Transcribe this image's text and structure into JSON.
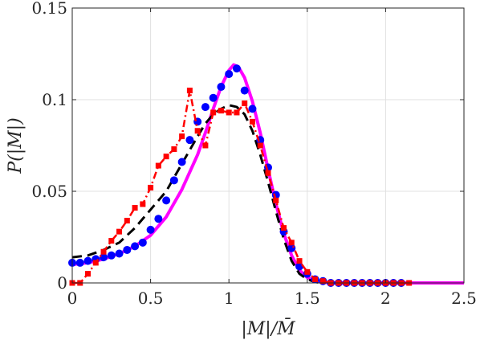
{
  "chart_data": {
    "type": "line",
    "title": "",
    "xlabel": "|M|/M̄",
    "ylabel": "P(|M|)",
    "xlim": [
      0,
      2.5
    ],
    "ylim": [
      0,
      0.15
    ],
    "xticks": [
      0,
      0.5,
      1,
      1.5,
      2,
      2.5
    ],
    "xtick_labels": [
      "0",
      "0.5",
      "1",
      "1.5",
      "2",
      "2.5"
    ],
    "yticks": [
      0,
      0.05,
      0.1,
      0.15
    ],
    "ytick_labels": [
      "0",
      "0.05",
      "0.1",
      "0.15"
    ],
    "grid": true,
    "legend": "none",
    "series": [
      {
        "style": "solid",
        "color": "#ff00ff",
        "x": [
          0,
          0.1,
          0.2,
          0.3,
          0.4,
          0.5,
          0.6,
          0.7,
          0.8,
          0.85,
          0.9,
          0.95,
          1.0,
          1.03,
          1.06,
          1.1,
          1.15,
          1.2,
          1.25,
          1.3,
          1.35,
          1.4,
          1.45,
          1.5,
          1.55,
          1.6,
          1.7,
          2.0,
          2.5
        ],
        "y": [
          0.01,
          0.011,
          0.013,
          0.016,
          0.02,
          0.026,
          0.036,
          0.051,
          0.07,
          0.082,
          0.095,
          0.107,
          0.116,
          0.119,
          0.118,
          0.112,
          0.099,
          0.082,
          0.062,
          0.043,
          0.027,
          0.015,
          0.007,
          0.003,
          0.001,
          0.0003,
          0,
          0,
          0
        ]
      },
      {
        "style": "dashed",
        "color": "#000000",
        "x": [
          0,
          0.1,
          0.2,
          0.3,
          0.4,
          0.5,
          0.6,
          0.7,
          0.8,
          0.85,
          0.9,
          0.95,
          1.0,
          1.05,
          1.1,
          1.15,
          1.2,
          1.25,
          1.3,
          1.35,
          1.4,
          1.45,
          1.5,
          1.55,
          1.6
        ],
        "y": [
          0.014,
          0.015,
          0.018,
          0.022,
          0.03,
          0.04,
          0.05,
          0.065,
          0.08,
          0.087,
          0.092,
          0.095,
          0.097,
          0.096,
          0.092,
          0.083,
          0.07,
          0.055,
          0.039,
          0.024,
          0.012,
          0.005,
          0.002,
          0.0005,
          0
        ]
      },
      {
        "style": "dots",
        "color": "#0000ff",
        "x": [
          0,
          0.05,
          0.1,
          0.15,
          0.2,
          0.25,
          0.3,
          0.35,
          0.4,
          0.45,
          0.5,
          0.55,
          0.6,
          0.65,
          0.7,
          0.75,
          0.8,
          0.85,
          0.9,
          0.95,
          1.0,
          1.05,
          1.1,
          1.15,
          1.2,
          1.25,
          1.3,
          1.35,
          1.4,
          1.45,
          1.5,
          1.55,
          1.6,
          1.65,
          1.7,
          1.75,
          1.8,
          1.85,
          1.9,
          1.95,
          2.0,
          2.05,
          2.1
        ],
        "y": [
          0.011,
          0.011,
          0.012,
          0.013,
          0.014,
          0.015,
          0.016,
          0.018,
          0.02,
          0.022,
          0.029,
          0.035,
          0.045,
          0.056,
          0.066,
          0.078,
          0.088,
          0.096,
          0.101,
          0.107,
          0.114,
          0.117,
          0.105,
          0.095,
          0.078,
          0.063,
          0.048,
          0.028,
          0.019,
          0.009,
          0.005,
          0.002,
          0.001,
          0,
          0,
          0,
          0,
          0,
          0,
          0,
          0,
          0,
          0
        ]
      },
      {
        "style": "dash-dot-square",
        "color": "#ff0000",
        "x": [
          0,
          0.05,
          0.1,
          0.15,
          0.2,
          0.25,
          0.3,
          0.35,
          0.4,
          0.45,
          0.5,
          0.55,
          0.6,
          0.65,
          0.7,
          0.75,
          0.8,
          0.85,
          0.9,
          0.95,
          1.0,
          1.05,
          1.1,
          1.15,
          1.2,
          1.25,
          1.3,
          1.35,
          1.4,
          1.45,
          1.5,
          1.55,
          1.6,
          1.65,
          1.7,
          1.75,
          1.8,
          1.85,
          1.9,
          1.95,
          2.0,
          2.05,
          2.1,
          2.15
        ],
        "y": [
          0,
          0,
          0.005,
          0.011,
          0.017,
          0.023,
          0.028,
          0.034,
          0.041,
          0.043,
          0.052,
          0.064,
          0.069,
          0.073,
          0.08,
          0.105,
          0.083,
          0.075,
          0.093,
          0.094,
          0.093,
          0.093,
          0.098,
          0.088,
          0.075,
          0.06,
          0.045,
          0.03,
          0.022,
          0.012,
          0.006,
          0.002,
          0.001,
          0,
          0,
          0,
          0,
          0,
          0,
          0,
          0,
          0,
          0,
          0
        ]
      }
    ]
  }
}
